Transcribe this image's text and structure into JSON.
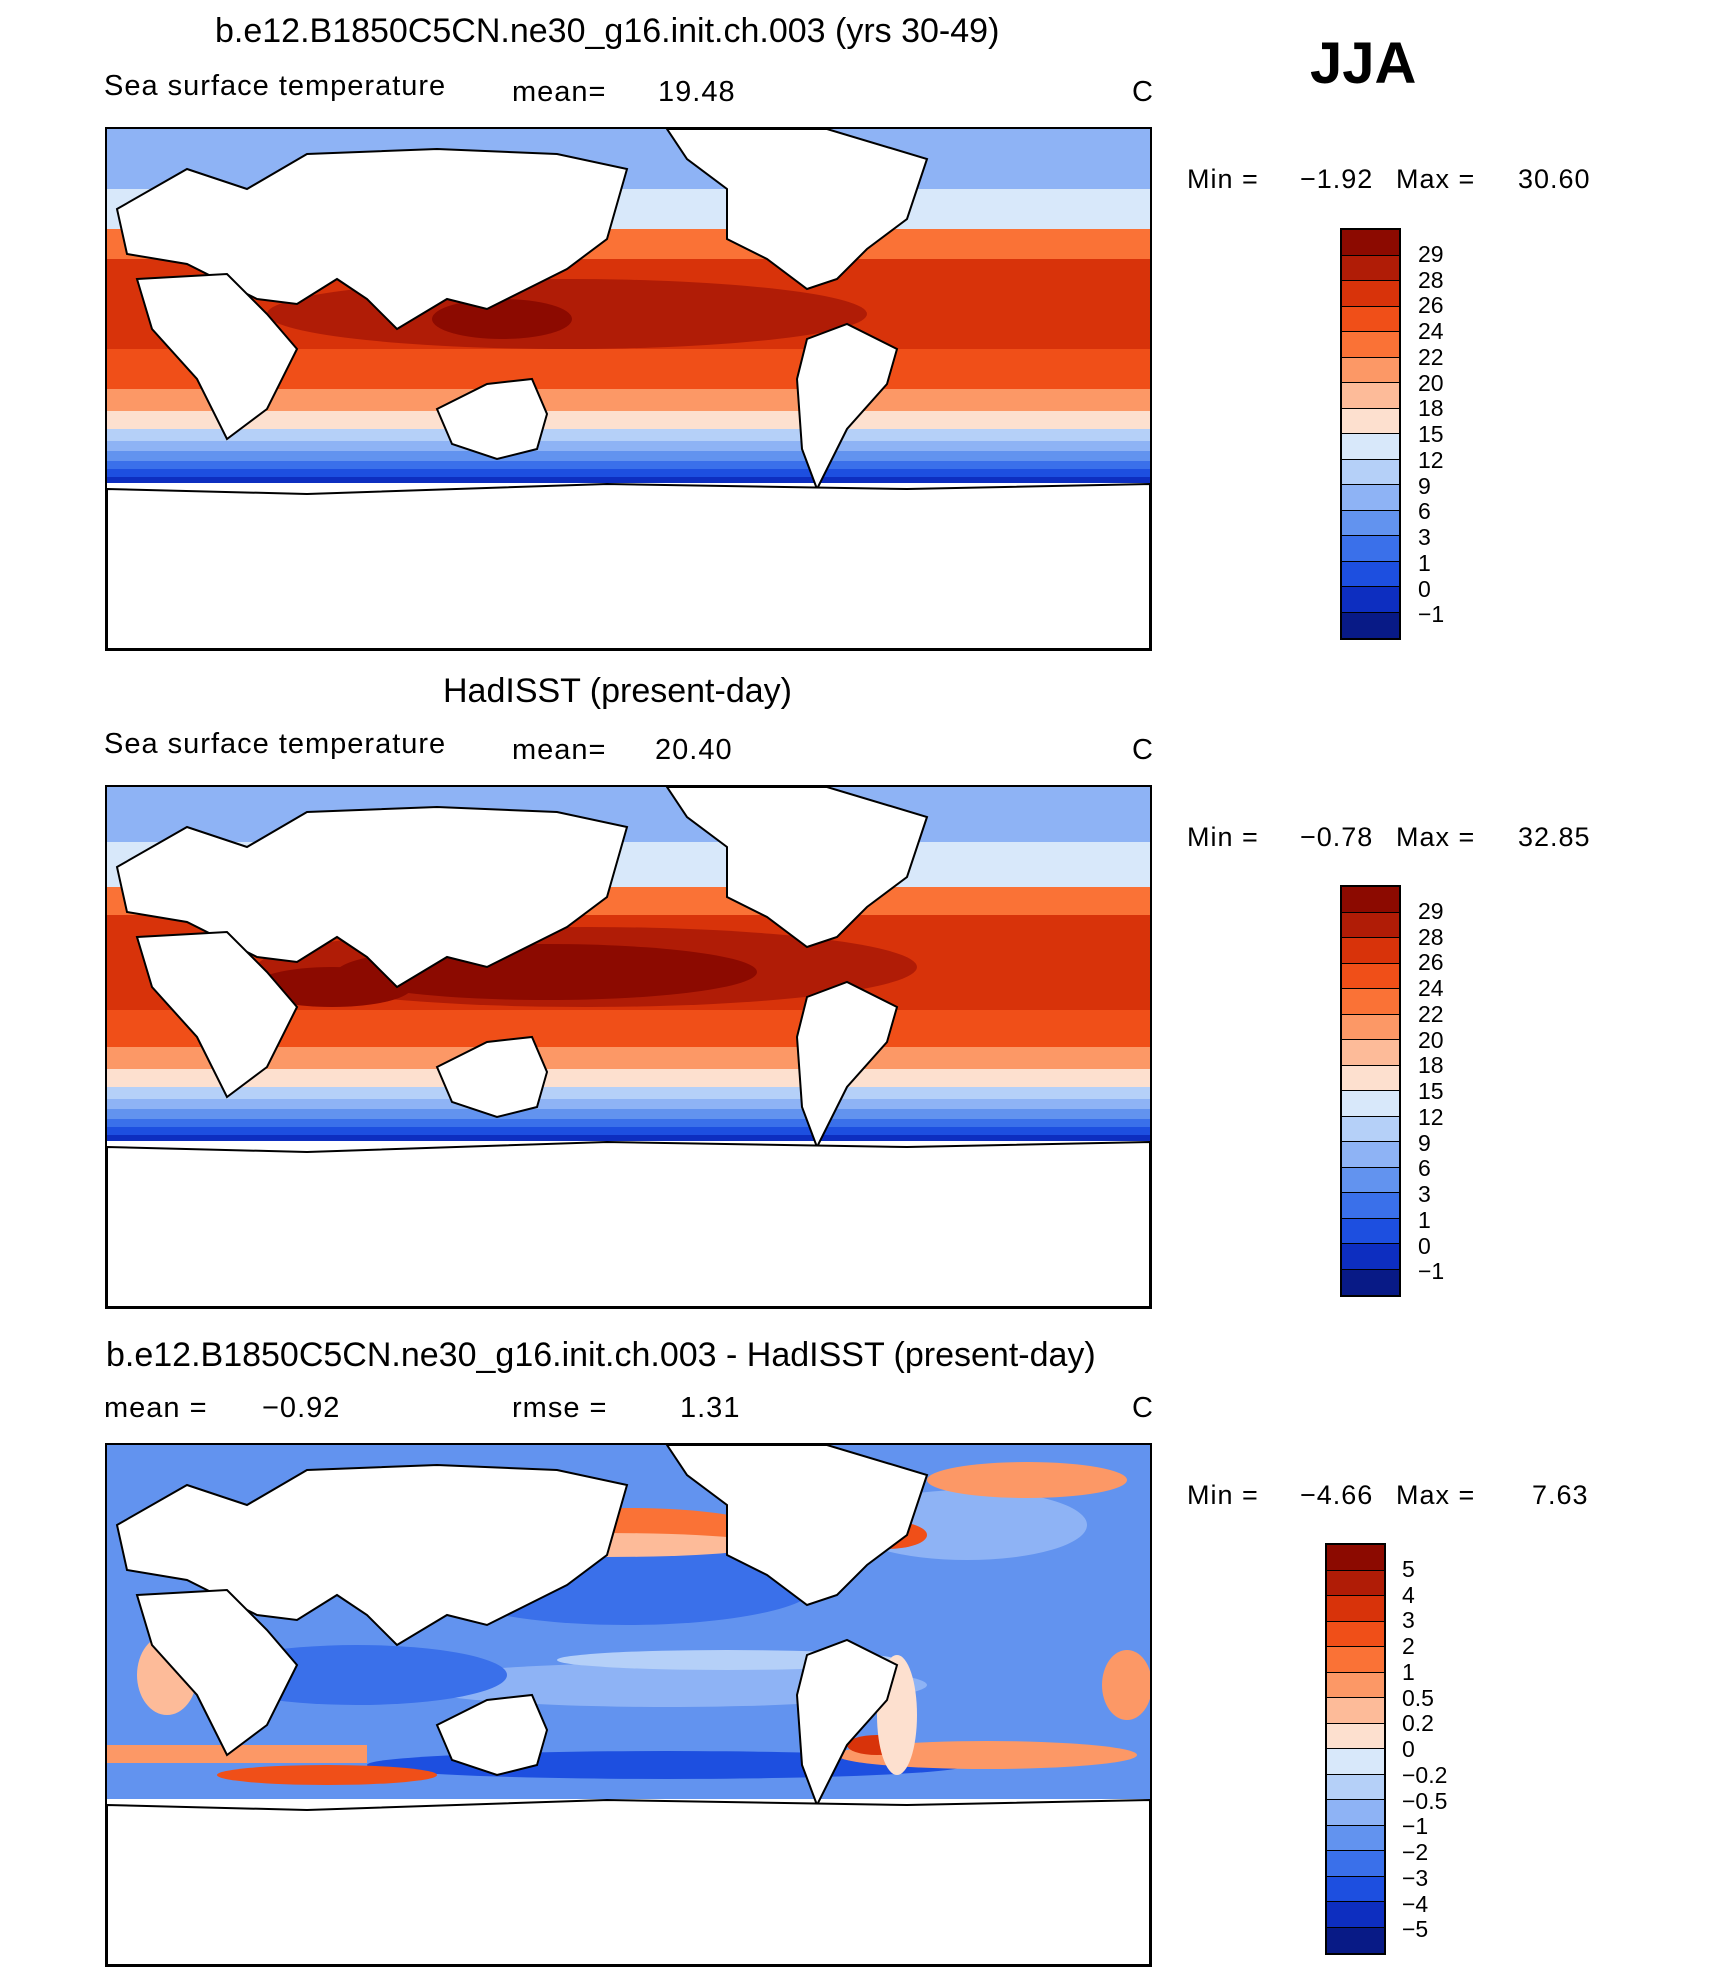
{
  "season": "JJA",
  "panels": [
    {
      "id": "model",
      "title": "b.e12.B1850C5CN.ne30_g16.init.ch.003 (yrs 30-49)",
      "variable": "Sea surface temperature",
      "stat1_label": "mean=",
      "stat1_value": "19.48",
      "stat2_label": "",
      "stat2_value": "",
      "units": "C",
      "min_label": "Min  =",
      "min_value": "−1.92",
      "max_label": "Max  =",
      "max_value": "30.60",
      "colorbar": {
        "labels": [
          "29",
          "28",
          "26",
          "24",
          "22",
          "20",
          "18",
          "15",
          "12",
          "9",
          "6",
          "3",
          "1",
          "0",
          "−1"
        ],
        "colors": [
          "#8c0a00",
          "#b01c06",
          "#d8330a",
          "#f04f18",
          "#fa7236",
          "#fc9866",
          "#fdbb99",
          "#fde0cf",
          "#d8e8fa",
          "#b5d0f8",
          "#8eb3f5",
          "#6293ef",
          "#3a70ea",
          "#1d4fe0",
          "#0d2ec0",
          "#081a86"
        ]
      }
    },
    {
      "id": "obs",
      "title": "HadISST (present-day)",
      "variable": "Sea surface temperature",
      "stat1_label": "mean=",
      "stat1_value": "20.40",
      "stat2_label": "",
      "stat2_value": "",
      "units": "C",
      "min_label": "Min  =",
      "min_value": "−0.78",
      "max_label": "Max  =",
      "max_value": "32.85",
      "colorbar": {
        "labels": [
          "29",
          "28",
          "26",
          "24",
          "22",
          "20",
          "18",
          "15",
          "12",
          "9",
          "6",
          "3",
          "1",
          "0",
          "−1"
        ],
        "colors": [
          "#8c0a00",
          "#b01c06",
          "#d8330a",
          "#f04f18",
          "#fa7236",
          "#fc9866",
          "#fdbb99",
          "#fde0cf",
          "#d8e8fa",
          "#b5d0f8",
          "#8eb3f5",
          "#6293ef",
          "#3a70ea",
          "#1d4fe0",
          "#0d2ec0",
          "#081a86"
        ]
      }
    },
    {
      "id": "diff",
      "title": "b.e12.B1850C5CN.ne30_g16.init.ch.003 - HadISST (present-day)",
      "variable": "",
      "stat1_label": "mean  =",
      "stat1_value": "−0.92",
      "stat2_label": "rmse  =",
      "stat2_value": "1.31",
      "units": "C",
      "min_label": "Min  =",
      "min_value": "−4.66",
      "max_label": "Max  =",
      "max_value": "7.63",
      "colorbar": {
        "labels": [
          "5",
          "4",
          "3",
          "2",
          "1",
          "0.5",
          "0.2",
          "0",
          "−0.2",
          "−0.5",
          "−1",
          "−2",
          "−3",
          "−4",
          "−5"
        ],
        "colors": [
          "#8c0a00",
          "#b01c06",
          "#d8330a",
          "#f04f18",
          "#fa7236",
          "#fc9866",
          "#fdbb99",
          "#fde0cf",
          "#d8e8fa",
          "#b5d0f8",
          "#8eb3f5",
          "#6293ef",
          "#3a70ea",
          "#1d4fe0",
          "#0d2ec0",
          "#081a86"
        ]
      }
    }
  ]
}
